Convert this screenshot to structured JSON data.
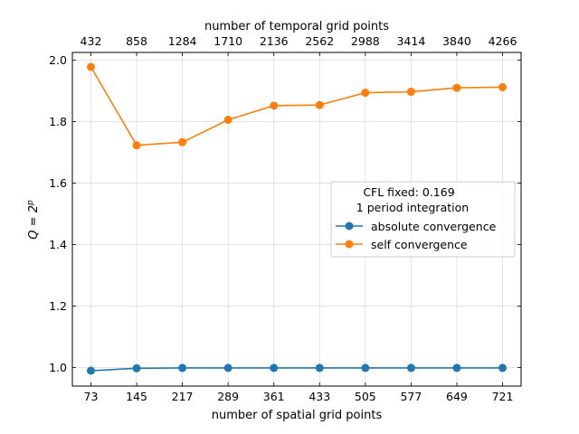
{
  "chart_data": {
    "type": "line",
    "x": [
      73,
      145,
      217,
      289,
      361,
      433,
      505,
      577,
      649,
      721
    ],
    "x_tick_labels": [
      "73",
      "145",
      "217",
      "289",
      "361",
      "433",
      "505",
      "577",
      "649",
      "721"
    ],
    "top_x": [
      432,
      858,
      1284,
      1710,
      2136,
      2562,
      2988,
      3414,
      3840,
      4266
    ],
    "top_tick_labels": [
      "432",
      "858",
      "1284",
      "1710",
      "2136",
      "2562",
      "2988",
      "3414",
      "3840",
      "4266"
    ],
    "xlabel": "number of spatial grid points",
    "top_xlabel": "number of temporal grid points",
    "ylabel_base": "Q = 2",
    "ylabel_sup": "p",
    "ylim": [
      0.94,
      2.025
    ],
    "y_ticks": [
      1.0,
      1.2,
      1.4,
      1.6,
      1.8,
      2.0
    ],
    "y_tick_labels": [
      "1.0",
      "1.2",
      "1.4",
      "1.6",
      "1.8",
      "2.0"
    ],
    "grid": true,
    "series": [
      {
        "name": "absolute convergence",
        "color": "#1f77b4",
        "values": [
          0.99,
          0.998,
          0.999,
          0.999,
          0.999,
          0.999,
          0.999,
          0.999,
          0.999,
          0.999
        ]
      },
      {
        "name": "self convergence",
        "color": "#ff7f0e",
        "values": [
          1.978,
          1.723,
          1.733,
          1.806,
          1.852,
          1.854,
          1.894,
          1.897,
          1.91,
          1.912
        ]
      }
    ],
    "legend": {
      "title_line1": "CFL fixed: 0.169",
      "title_line2": "1 period integration",
      "placement": "center-right"
    }
  }
}
